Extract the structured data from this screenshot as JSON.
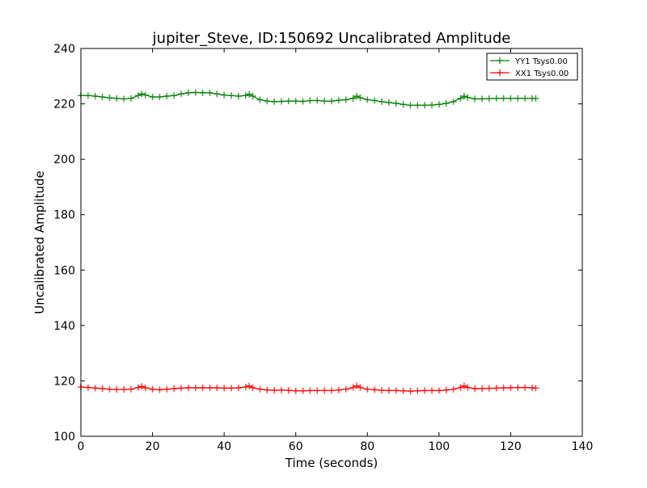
{
  "chart_data": {
    "type": "line",
    "title": "jupiter_Steve, ID:150692 Uncalibrated Amplitude",
    "xlabel": "Time (seconds)",
    "ylabel": "Uncalibrated Amplitude",
    "xlim": [
      0,
      140
    ],
    "ylim": [
      100,
      240
    ],
    "xticks": [
      "0",
      "20",
      "40",
      "60",
      "80",
      "100",
      "120",
      "140"
    ],
    "yticks": [
      "100",
      "120",
      "140",
      "160",
      "180",
      "200",
      "220",
      "240"
    ],
    "grid": false,
    "legend_position": "top-right",
    "x": [
      0,
      2,
      4,
      6,
      8,
      10,
      12,
      14,
      16,
      17,
      18,
      20,
      22,
      24,
      26,
      28,
      30,
      32,
      34,
      36,
      38,
      40,
      42,
      44,
      46,
      47,
      48,
      50,
      52,
      54,
      56,
      58,
      60,
      62,
      64,
      66,
      68,
      70,
      72,
      74,
      76,
      77,
      78,
      80,
      82,
      84,
      86,
      88,
      90,
      92,
      94,
      96,
      98,
      100,
      102,
      104,
      106,
      107,
      108,
      110,
      112,
      114,
      116,
      118,
      120,
      122,
      124,
      126,
      127
    ],
    "series": [
      {
        "name": "YY1 Tsys0.00",
        "color": "#008000",
        "values": [
          223,
          223,
          222.8,
          222.5,
          222.2,
          222,
          221.8,
          222,
          223,
          223.6,
          223.2,
          222.5,
          222.5,
          222.8,
          223,
          223.6,
          224,
          224.1,
          224,
          224,
          223.6,
          223.2,
          223,
          222.8,
          223,
          223.5,
          222.8,
          221.5,
          221,
          220.8,
          220.9,
          221,
          221,
          220.9,
          221.2,
          221.2,
          221,
          221,
          221.3,
          221.5,
          222,
          222.8,
          222.2,
          221.5,
          221.2,
          220.8,
          220.5,
          220.2,
          219.8,
          219.5,
          219.5,
          219.5,
          219.6,
          219.8,
          220.2,
          220.8,
          222,
          222.8,
          222.3,
          221.8,
          221.8,
          221.9,
          222,
          222,
          222,
          222,
          222,
          222,
          222
        ]
      },
      {
        "name": "XX1 Tsys0.00",
        "color": "#ff0000",
        "values": [
          117.8,
          117.6,
          117.4,
          117.2,
          117,
          116.9,
          116.9,
          117,
          117.6,
          118,
          117.5,
          117,
          116.8,
          117,
          117.2,
          117.4,
          117.5,
          117.5,
          117.5,
          117.5,
          117.5,
          117.4,
          117.4,
          117.5,
          117.8,
          118.2,
          117.5,
          117,
          116.7,
          116.6,
          116.7,
          116.6,
          116.4,
          116.4,
          116.5,
          116.5,
          116.5,
          116.5,
          116.7,
          117,
          117.6,
          118.2,
          117.6,
          117,
          116.8,
          116.6,
          116.5,
          116.5,
          116.4,
          116.3,
          116.4,
          116.5,
          116.5,
          116.5,
          116.7,
          117,
          117.6,
          118.2,
          117.6,
          117.2,
          117.2,
          117.3,
          117.4,
          117.5,
          117.5,
          117.6,
          117.6,
          117.5,
          117.4
        ]
      }
    ]
  }
}
